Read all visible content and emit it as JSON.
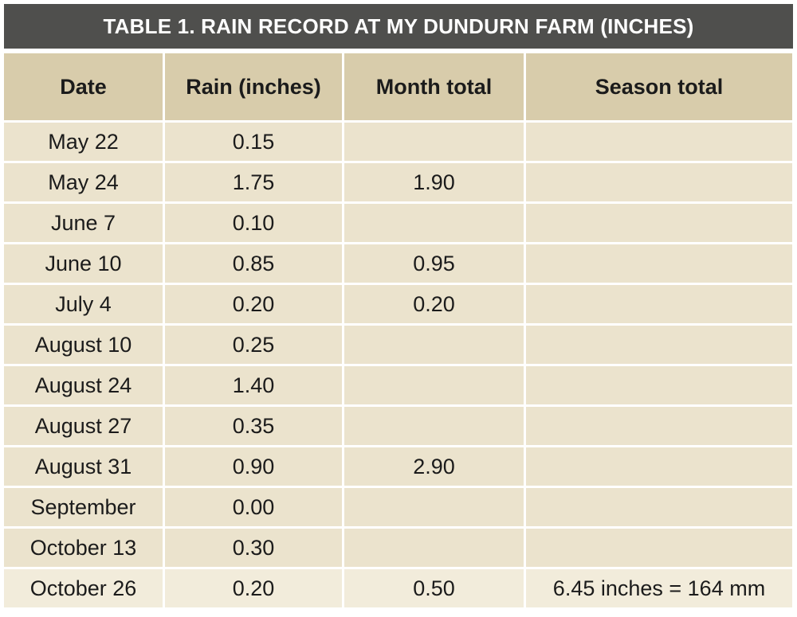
{
  "title": "TABLE 1. RAIN RECORD AT MY DUNDURN FARM (INCHES)",
  "columns": [
    "Date",
    "Rain (inches)",
    "Month total",
    "Season total"
  ],
  "rows": [
    {
      "date": "May 22",
      "rain": "0.15",
      "month_total": "",
      "season_total": ""
    },
    {
      "date": "May 24",
      "rain": "1.75",
      "month_total": "1.90",
      "season_total": ""
    },
    {
      "date": "June 7",
      "rain": "0.10",
      "month_total": "",
      "season_total": ""
    },
    {
      "date": "June 10",
      "rain": "0.85",
      "month_total": "0.95",
      "season_total": ""
    },
    {
      "date": "July 4",
      "rain": "0.20",
      "month_total": "0.20",
      "season_total": ""
    },
    {
      "date": "August 10",
      "rain": "0.25",
      "month_total": "",
      "season_total": ""
    },
    {
      "date": "August 24",
      "rain": "1.40",
      "month_total": "",
      "season_total": ""
    },
    {
      "date": "August 27",
      "rain": "0.35",
      "month_total": "",
      "season_total": ""
    },
    {
      "date": "August 31",
      "rain": "0.90",
      "month_total": "2.90",
      "season_total": ""
    },
    {
      "date": "September",
      "rain": "0.00",
      "month_total": "",
      "season_total": ""
    },
    {
      "date": "October 13",
      "rain": "0.30",
      "month_total": "",
      "season_total": ""
    },
    {
      "date": "October 26",
      "rain": "0.20",
      "month_total": "0.50",
      "season_total": "6.45 inches = 164 mm"
    }
  ],
  "colors": {
    "title_bg": "#4f4f4d",
    "header_bg": "#d8ccab",
    "cell_bg": "#ebe3cd"
  }
}
